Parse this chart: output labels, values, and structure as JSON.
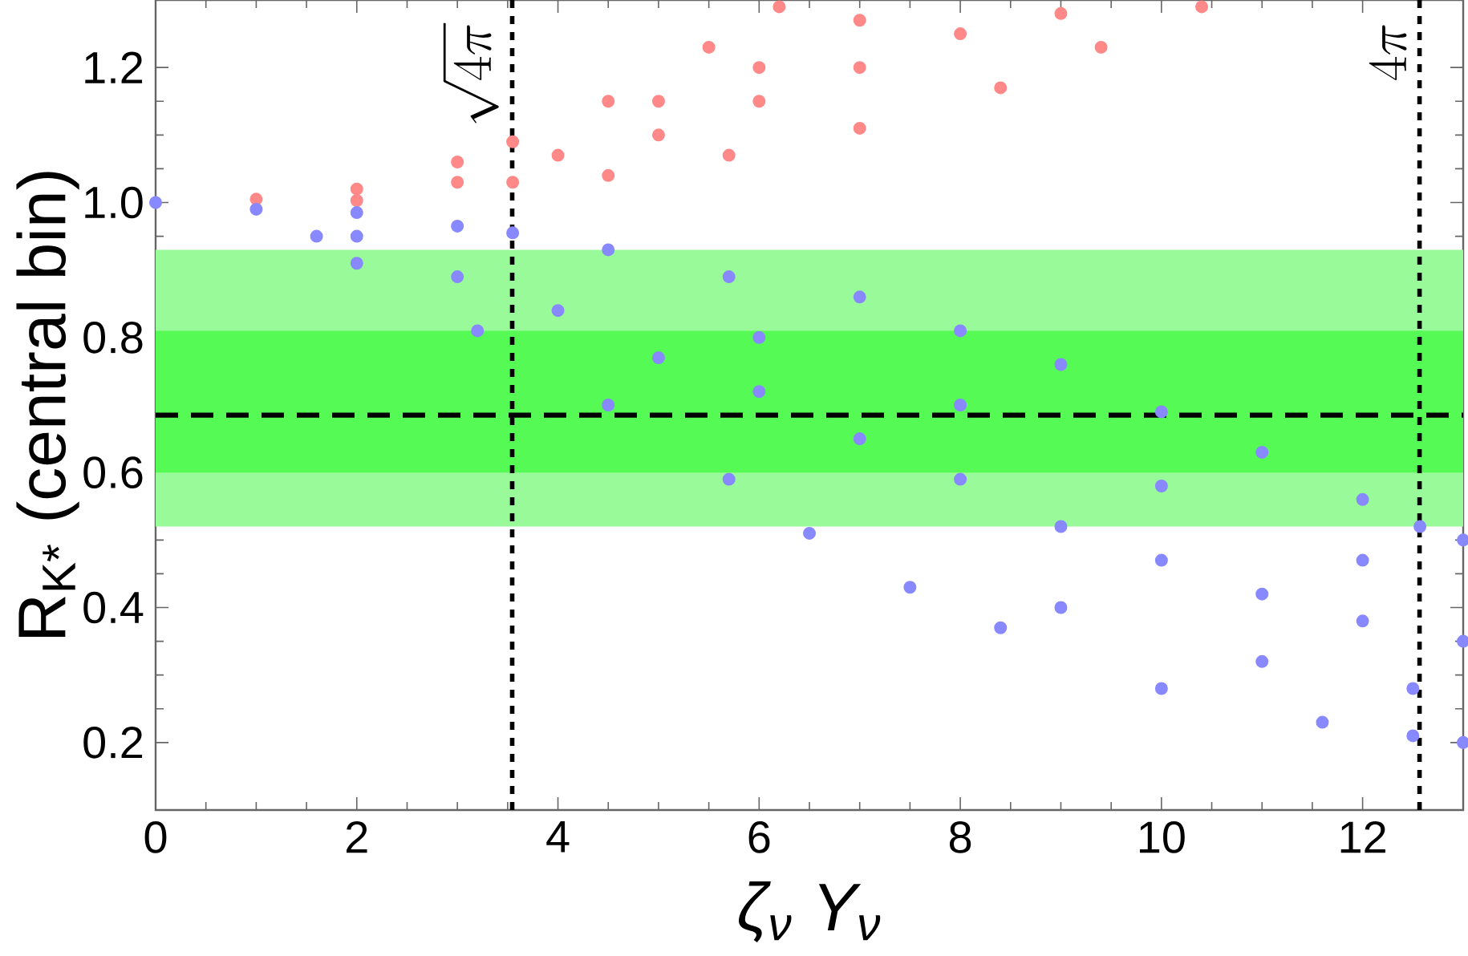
{
  "chart_data": {
    "type": "scatter",
    "xlabel": "ζ$_{ν}$ Y$_{ν}$",
    "ylabel": "R$_{K*}$ (central bin)",
    "xlim": [
      0,
      13
    ],
    "ylim": [
      0.1,
      1.3
    ],
    "xticks": [
      0,
      2,
      4,
      6,
      8,
      10,
      12
    ],
    "yticks": [
      0.2,
      0.4,
      0.6,
      0.8,
      {
        "value": 1,
        "label": "1.0"
      },
      1.2
    ],
    "series": [
      {
        "color": "#ff8888",
        "x": [
          1,
          2,
          3,
          3.55,
          4.5,
          5.5,
          6.2,
          2,
          3.55,
          4.5,
          5.7,
          7,
          8.4,
          9.4,
          10.4,
          3,
          4,
          5,
          6,
          7,
          8,
          9,
          5,
          6,
          7
        ],
        "values": [
          1.005,
          1.02,
          1.06,
          1.09,
          1.15,
          1.23,
          1.29,
          1.003,
          1.03,
          1.04,
          1.07,
          1.11,
          1.17,
          1.23,
          1.29,
          1.03,
          1.07,
          1.1,
          1.15,
          1.2,
          1.25,
          1.28,
          1.15,
          1.2,
          1.27
        ]
      },
      {
        "color": "#8888ff",
        "x": [
          0,
          2,
          3,
          3.55,
          4.5,
          5.7,
          7,
          8,
          9,
          10,
          11,
          12,
          12.57,
          13,
          1,
          1.6,
          2,
          3.2,
          4.5,
          5.7,
          6.5,
          7.5,
          8.4,
          10,
          11.6,
          12.5,
          13,
          2,
          3,
          4,
          5,
          6,
          7,
          8,
          9,
          10,
          11,
          12,
          13,
          6,
          8,
          10,
          12,
          9,
          11,
          12.5
        ],
        "values": [
          1.0,
          0.985,
          0.965,
          0.955,
          0.93,
          0.89,
          0.86,
          0.81,
          0.76,
          0.69,
          0.63,
          0.56,
          0.52,
          0.5,
          0.99,
          0.95,
          0.91,
          0.81,
          0.7,
          0.59,
          0.51,
          0.43,
          0.37,
          0.28,
          0.23,
          0.21,
          0.2,
          0.95,
          0.89,
          0.84,
          0.77,
          0.72,
          0.65,
          0.59,
          0.52,
          0.47,
          0.42,
          0.38,
          0.35,
          0.8,
          0.7,
          0.58,
          0.47,
          0.4,
          0.32,
          0.28
        ]
      }
    ],
    "bands": [
      {
        "axis": "y",
        "from": 0.52,
        "to": 0.93,
        "color": "#99fa99"
      },
      {
        "axis": "y",
        "from": 0.6,
        "to": 0.81,
        "color": "#55fa55"
      }
    ],
    "ref_lines": [
      {
        "axis": "y",
        "value": 0.685,
        "line_style": "dashed",
        "color": "#000000"
      },
      {
        "axis": "x",
        "value": 3.545,
        "line_style": "dotted",
        "color": "#000000",
        "label": "\\sqrt{4\\pi}"
      },
      {
        "axis": "x",
        "value": 12.566,
        "line_style": "dotted",
        "color": "#000000",
        "label": "4\\pi"
      }
    ]
  }
}
